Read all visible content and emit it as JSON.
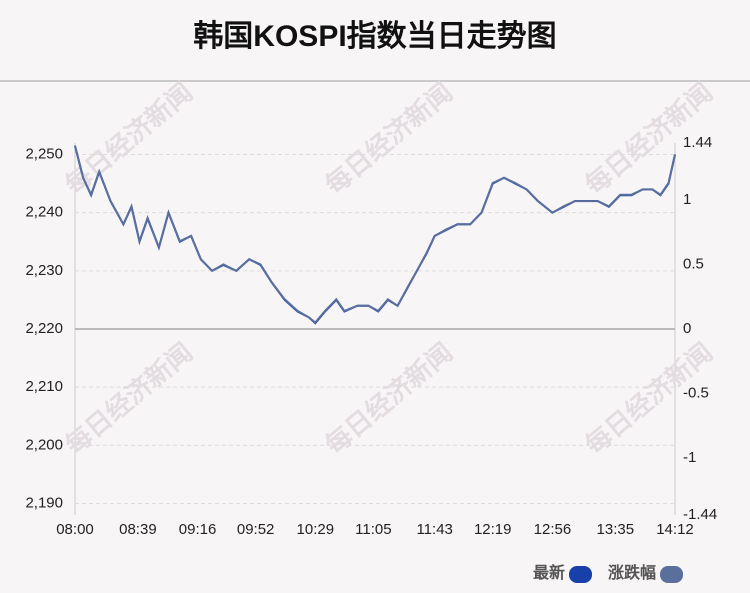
{
  "chart_data": {
    "type": "line",
    "title": "韩国KOSPI指数当日走势图",
    "watermark": "每日经济新闻",
    "x": [
      "08:00",
      "08:05",
      "08:10",
      "08:15",
      "08:22",
      "08:30",
      "08:35",
      "08:40",
      "08:45",
      "08:52",
      "08:58",
      "09:05",
      "09:12",
      "09:18",
      "09:25",
      "09:32",
      "09:40",
      "09:48",
      "09:55",
      "10:02",
      "10:10",
      "10:18",
      "10:25",
      "10:29",
      "10:35",
      "10:42",
      "10:47",
      "10:55",
      "11:02",
      "11:08",
      "11:14",
      "11:20",
      "11:26",
      "11:32",
      "11:38",
      "11:43",
      "11:50",
      "11:57",
      "12:05",
      "12:12",
      "12:19",
      "12:26",
      "12:33",
      "12:40",
      "12:47",
      "12:56",
      "13:03",
      "13:10",
      "13:17",
      "13:24",
      "13:31",
      "13:38",
      "13:45",
      "13:52",
      "13:58",
      "14:03",
      "14:08",
      "14:12"
    ],
    "xlim": [
      "08:00",
      "14:12"
    ],
    "xticks": [
      "08:00",
      "08:39",
      "09:16",
      "09:52",
      "10:29",
      "11:05",
      "11:43",
      "12:19",
      "12:56",
      "13:35",
      "14:12"
    ],
    "series": [
      {
        "name": "最新",
        "color": "#1740a8",
        "values": [
          2251.5,
          2246,
          2243,
          2247,
          2242,
          2238,
          2241,
          2235,
          2239,
          2234,
          2240,
          2235,
          2236,
          2232,
          2230,
          2231,
          2230,
          2232,
          2231,
          2228,
          2225,
          2223,
          2222,
          2221,
          2223,
          2225,
          2223,
          2224,
          2224,
          2223,
          2225,
          2224,
          2227,
          2230,
          2233,
          2236,
          2237,
          2238,
          2238,
          2240,
          2245,
          2246,
          2245,
          2244,
          2242,
          2240,
          2241,
          2242,
          2242,
          2242,
          2241,
          2243,
          2243,
          2244,
          2244,
          2243,
          2245,
          2250
        ]
      },
      {
        "name": "涨跌幅",
        "color": "#5a6f9c",
        "axis": "y2",
        "values": [
          1.42,
          1.17,
          1.04,
          1.22,
          0.99,
          0.81,
          0.95,
          0.68,
          0.86,
          0.63,
          0.9,
          0.68,
          0.72,
          0.54,
          0.45,
          0.5,
          0.45,
          0.54,
          0.5,
          0.36,
          0.23,
          0.14,
          0.09,
          0.05,
          0.14,
          0.23,
          0.14,
          0.18,
          0.18,
          0.14,
          0.23,
          0.18,
          0.32,
          0.45,
          0.59,
          0.72,
          0.77,
          0.81,
          0.81,
          0.9,
          1.13,
          1.17,
          1.13,
          1.08,
          0.99,
          0.9,
          0.95,
          0.99,
          0.99,
          0.99,
          0.95,
          1.04,
          1.04,
          1.08,
          1.08,
          1.04,
          1.13,
          1.35
        ]
      }
    ],
    "ylim": [
      2188.03,
      2251.97
    ],
    "yticks": [
      {
        "value": 2190,
        "label": "2,190"
      },
      {
        "value": 2200,
        "label": "2,200"
      },
      {
        "value": 2210,
        "label": "2,210"
      },
      {
        "value": 2220,
        "label": "2,220"
      },
      {
        "value": 2230,
        "label": "2,230"
      },
      {
        "value": 2240,
        "label": "2,240"
      },
      {
        "value": 2250,
        "label": "2,250"
      }
    ],
    "y2lim": [
      -1.44,
      1.44
    ],
    "y2ticks": [
      -1.44,
      -1,
      -0.5,
      0,
      0.5,
      1,
      1.44
    ],
    "grid": true
  }
}
